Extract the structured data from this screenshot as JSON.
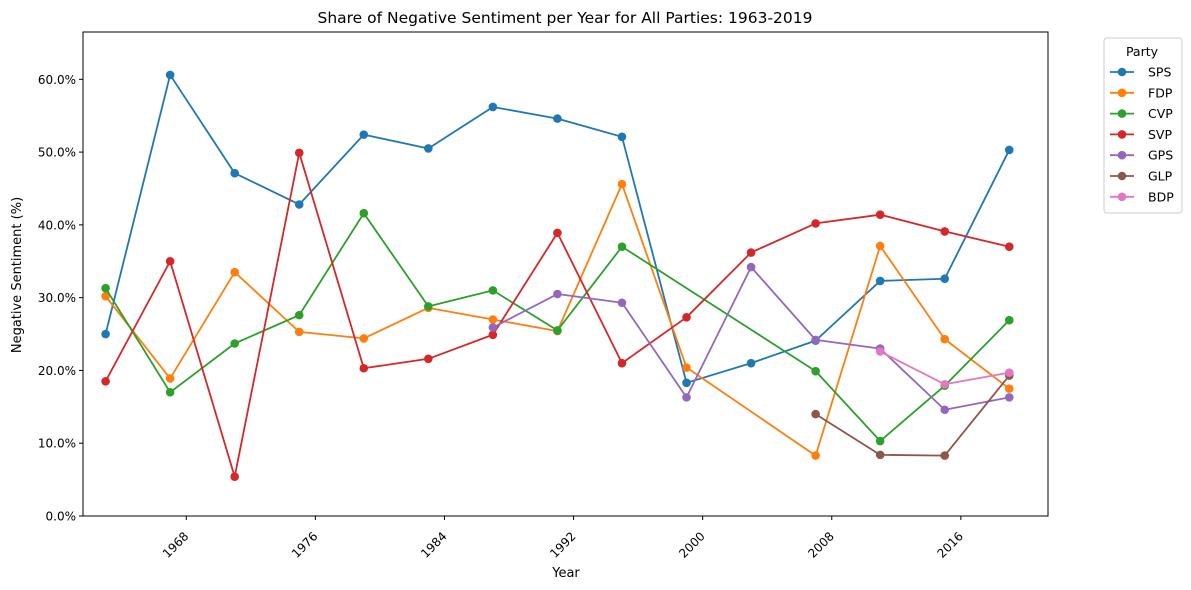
{
  "chart_data": {
    "type": "line",
    "title": "Share of Negative Sentiment per Year for All Parties: 1963-2019",
    "xlabel": "Year",
    "ylabel": "Negative Sentiment (%)",
    "xlim": [
      1961.6,
      2021.4
    ],
    "ylim": [
      0,
      66.5
    ],
    "x_ticks": [
      1968,
      1976,
      1984,
      1992,
      2000,
      2008,
      2016
    ],
    "x_tick_labels": [
      "1968",
      "1976",
      "1984",
      "1992",
      "2000",
      "2008",
      "2016"
    ],
    "y_ticks": [
      0,
      10,
      20,
      30,
      40,
      50,
      60
    ],
    "y_tick_labels": [
      "0.0%",
      "10.0%",
      "20.0%",
      "30.0%",
      "40.0%",
      "50.0%",
      "60.0%"
    ],
    "legend_title": "Party",
    "legend_position": "outside-top-right",
    "series": [
      {
        "name": "SPS",
        "color": "#1f77b4",
        "x": [
          1963,
          1967,
          1971,
          1975,
          1979,
          1983,
          1987,
          1991,
          1995,
          1999,
          2003,
          2007,
          2011,
          2015,
          2019
        ],
        "values": [
          25.0,
          60.6,
          47.1,
          42.8,
          52.4,
          50.5,
          56.2,
          54.6,
          52.1,
          18.3,
          21.0,
          24.1,
          32.3,
          32.6,
          50.3
        ]
      },
      {
        "name": "FDP",
        "color": "#ff7f0e",
        "x": [
          1963,
          1967,
          1971,
          1975,
          1979,
          1983,
          1987,
          1991,
          1995,
          1999,
          2007,
          2011,
          2015,
          2019
        ],
        "values": [
          30.2,
          18.9,
          33.5,
          25.3,
          24.4,
          28.6,
          27.0,
          25.4,
          45.6,
          20.4,
          8.3,
          37.1,
          24.3,
          17.5
        ]
      },
      {
        "name": "CVP",
        "color": "#2ca02c",
        "x": [
          1963,
          1967,
          1971,
          1975,
          1979,
          1983,
          1987,
          1991,
          1995,
          2007,
          2011,
          2015,
          2019
        ],
        "values": [
          31.3,
          17.0,
          23.7,
          27.6,
          41.6,
          28.8,
          31.0,
          25.5,
          37.0,
          19.9,
          10.3,
          17.9,
          26.9
        ]
      },
      {
        "name": "SVP",
        "color": "#d62728",
        "x": [
          1963,
          1967,
          1971,
          1975,
          1979,
          1983,
          1987,
          1991,
          1995,
          1999,
          2003,
          2007,
          2011,
          2015,
          2019
        ],
        "values": [
          18.5,
          35.0,
          5.4,
          49.9,
          20.3,
          21.6,
          24.9,
          38.9,
          21.0,
          27.3,
          36.2,
          40.2,
          41.4,
          39.1,
          37.0
        ]
      },
      {
        "name": "GPS",
        "color": "#9467bd",
        "x": [
          1987,
          1991,
          1995,
          1999,
          2003,
          2007,
          2011,
          2015,
          2019
        ],
        "values": [
          25.9,
          30.5,
          29.3,
          16.3,
          34.2,
          24.2,
          23.0,
          14.6,
          16.3
        ]
      },
      {
        "name": "GLP",
        "color": "#8c564b",
        "x": [
          2007,
          2011,
          2015,
          2019
        ],
        "values": [
          14.0,
          8.4,
          8.3,
          19.3
        ]
      },
      {
        "name": "BDP",
        "color": "#e377c2",
        "x": [
          2011,
          2015,
          2019
        ],
        "values": [
          22.6,
          18.1,
          19.7
        ]
      }
    ]
  }
}
